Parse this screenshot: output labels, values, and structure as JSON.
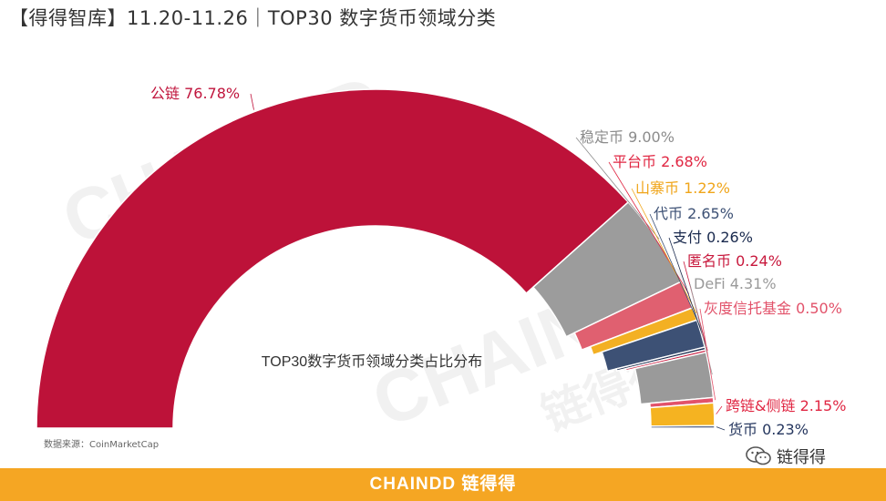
{
  "title": "【得得智库】11.20-11.26｜TOP30 数字货币领域分类",
  "source": "数据来源：CoinMarketCap",
  "footer": {
    "brand": "CHAINDD 链得得"
  },
  "badge": {
    "name": "链得得",
    "icon": "wechat-icon"
  },
  "watermarks": [
    "CHAINDD",
    "链得得",
    "CHAINDD",
    "链得得"
  ],
  "colors": {
    "background": "#ffffff",
    "footer": "#f5a623",
    "wedge_text": "#666666"
  },
  "chart_data": {
    "type": "pie",
    "variant": "semicircle-donut",
    "title": "TOP30数字货币领域分类占比分布",
    "series": [
      {
        "name": "公链",
        "value": 76.78,
        "label": "公链 76.78%",
        "color": "#bd1239",
        "text_color": "#c0143c"
      },
      {
        "name": "稳定币",
        "value": 9.0,
        "label": "稳定币 9.00%",
        "color": "#9c9c9c",
        "text_color": "#8c8c8c"
      },
      {
        "name": "平台币",
        "value": 2.68,
        "label": "平台币 2.68%",
        "color": "#e06070",
        "text_color": "#e02642"
      },
      {
        "name": "山寨币",
        "value": 1.22,
        "label": "山寨币 1.22%",
        "color": "#f3b023",
        "text_color": "#f0a51a"
      },
      {
        "name": "代币",
        "value": 2.65,
        "label": "代币 2.65%",
        "color": "#3d5175",
        "text_color": "#3d5175"
      },
      {
        "name": "支付",
        "value": 0.26,
        "label": "支付 0.26%",
        "color": "#1a2a4e",
        "text_color": "#1a2a4e"
      },
      {
        "name": "匿名币",
        "value": 0.24,
        "label": "匿名币 0.24%",
        "color": "#c8193d",
        "text_color": "#c8193d"
      },
      {
        "name": "DeFi",
        "value": 4.31,
        "label": "DeFi 4.31%",
        "color": "#9a9a9a",
        "text_color": "#9a9a9a"
      },
      {
        "name": "灰度信托基金",
        "value": 0.5,
        "label": "灰度信托基金 0.50%",
        "color": "#e2526a",
        "text_color": "#e2526a"
      },
      {
        "name": "跨链&侧链",
        "value": 2.15,
        "label": "跨链&侧链 2.15%",
        "color": "#f5b321",
        "text_color": "#e02642"
      },
      {
        "name": "货币",
        "value": 0.23,
        "label": "货币 0.23%",
        "color": "#26375f",
        "text_color": "#26375f"
      }
    ],
    "legend": "none (labels beside wedges)"
  }
}
